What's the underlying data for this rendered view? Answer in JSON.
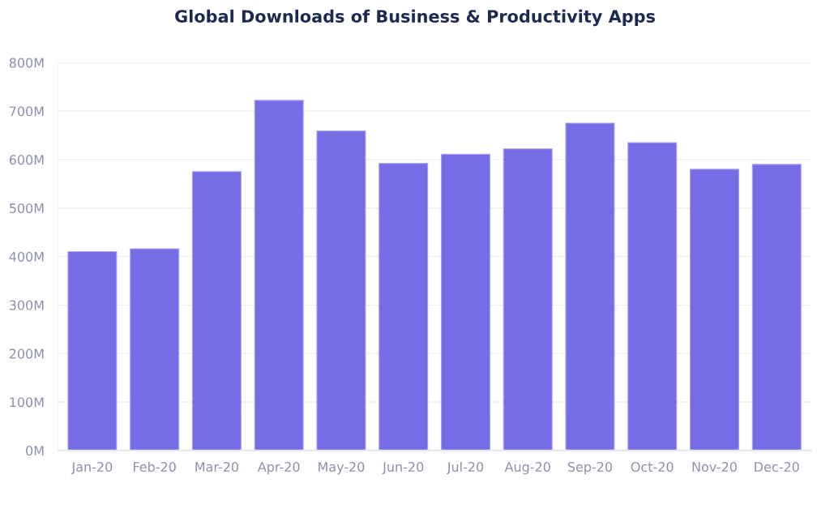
{
  "chart_data": {
    "type": "bar",
    "title": "Global Downloads of Business & Productivity Apps",
    "categories": [
      "Jan-20",
      "Feb-20",
      "Mar-20",
      "Apr-20",
      "May-20",
      "Jun-20",
      "Jul-20",
      "Aug-20",
      "Sep-20",
      "Oct-20",
      "Nov-20",
      "Dec-20"
    ],
    "values": [
      410,
      416,
      575,
      722,
      659,
      592,
      611,
      622,
      675,
      635,
      580,
      590
    ],
    "color": "#766ce6",
    "ylim": [
      0,
      800
    ],
    "yticks": [
      {
        "value": 0,
        "label": "0M"
      },
      {
        "value": 100,
        "label": "100M"
      },
      {
        "value": 200,
        "label": "200M"
      },
      {
        "value": 300,
        "label": "300M"
      },
      {
        "value": 400,
        "label": "400M"
      },
      {
        "value": 500,
        "label": "500M"
      },
      {
        "value": 600,
        "label": "600M"
      },
      {
        "value": 700,
        "label": "700M"
      },
      {
        "value": 800,
        "label": "800M"
      }
    ],
    "grid": "y"
  }
}
